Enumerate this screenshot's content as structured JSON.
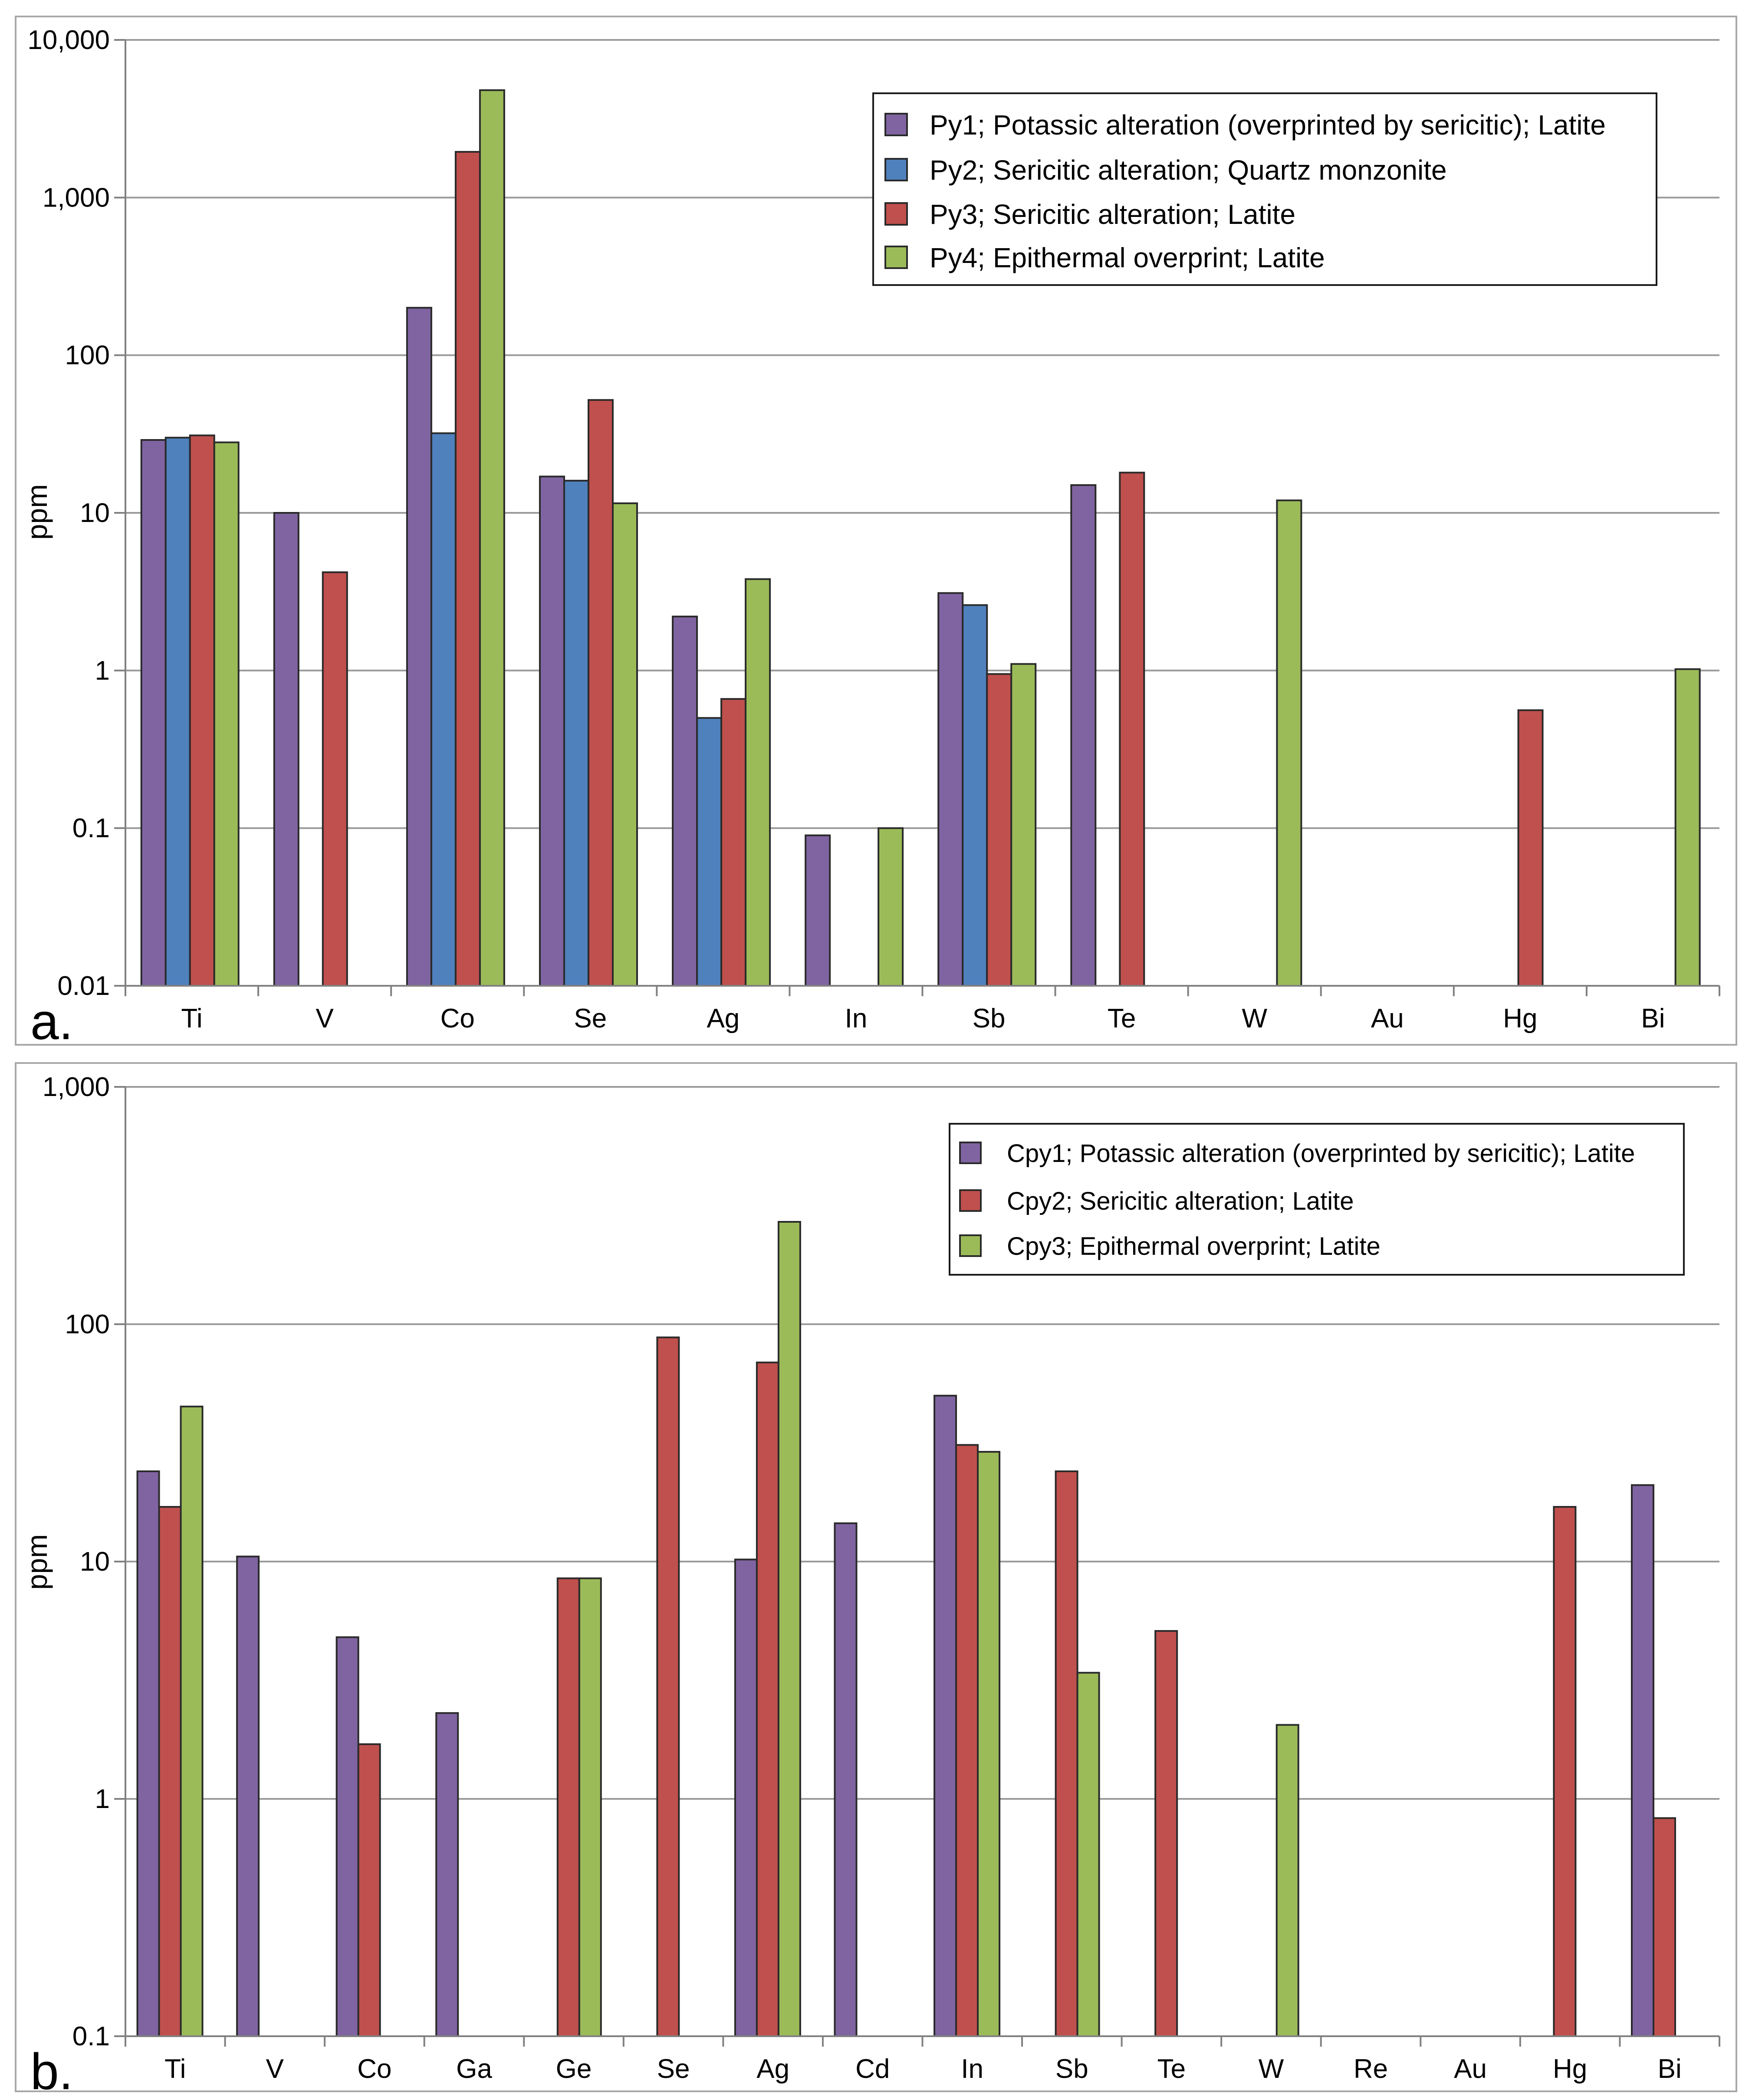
{
  "chart_data": [
    {
      "type": "bar",
      "panel_label": "a.",
      "ylabel": "ppm",
      "yscale": "log",
      "ylim": [
        0.01,
        10000
      ],
      "ytick_values": [
        0.01,
        0.1,
        1,
        10,
        100,
        1000,
        10000
      ],
      "ytick_labels": [
        "0.01",
        "0.1",
        "1",
        "10",
        "100",
        "1,000",
        "10,000"
      ],
      "grid": true,
      "legend_position": "top-right",
      "categories": [
        "Ti",
        "V",
        "Co",
        "Se",
        "Ag",
        "In",
        "Sb",
        "Te",
        "W",
        "Au",
        "Hg",
        "Bi"
      ],
      "series": [
        {
          "name": "Py1; Potassic alteration (overprinted by sericitic); Latite",
          "color": "#8064a2",
          "values": [
            29,
            10,
            200,
            17,
            2.2,
            0.09,
            3.1,
            15,
            null,
            null,
            null,
            null
          ]
        },
        {
          "name": "Py2; Sericitic alteration; Quartz monzonite",
          "color": "#4f81bd",
          "values": [
            30,
            null,
            32,
            16,
            0.5,
            null,
            2.6,
            null,
            null,
            null,
            null,
            null
          ]
        },
        {
          "name": "Py3; Sericitic alteration; Latite",
          "color": "#c0504d",
          "values": [
            31,
            4.2,
            1950,
            52,
            0.66,
            null,
            0.95,
            18,
            null,
            null,
            0.56,
            null
          ]
        },
        {
          "name": "Py4; Epithermal overprint; Latite",
          "color": "#9bbb59",
          "values": [
            28,
            null,
            4800,
            11.5,
            3.8,
            0.1,
            1.1,
            null,
            12,
            null,
            null,
            1.02
          ]
        }
      ]
    },
    {
      "type": "bar",
      "panel_label": "b.",
      "ylabel": "ppm",
      "yscale": "log",
      "ylim": [
        0.1,
        1000
      ],
      "ytick_values": [
        0.1,
        1,
        10,
        100,
        1000
      ],
      "ytick_labels": [
        "0.1",
        "1",
        "10",
        "100",
        "1,000"
      ],
      "grid": true,
      "legend_position": "top-right",
      "categories": [
        "Ti",
        "V",
        "Co",
        "Ga",
        "Ge",
        "Se",
        "Ag",
        "Cd",
        "In",
        "Sb",
        "Te",
        "W",
        "Re",
        "Au",
        "Hg",
        "Bi"
      ],
      "series": [
        {
          "name": "Cpy1; Potassic alteration (overprinted by sericitic); Latite",
          "color": "#8064a2",
          "values": [
            24,
            10.5,
            4.8,
            2.3,
            null,
            null,
            10.2,
            14.5,
            50,
            null,
            null,
            null,
            null,
            null,
            null,
            21
          ]
        },
        {
          "name": "Cpy2; Sericitic alteration; Latite",
          "color": "#c0504d",
          "values": [
            17,
            null,
            1.7,
            null,
            8.5,
            88,
            69,
            null,
            31,
            24,
            5.1,
            null,
            null,
            null,
            17,
            0.83
          ]
        },
        {
          "name": "Cpy3; Epithermal overprint; Latite",
          "color": "#9bbb59",
          "values": [
            45,
            null,
            null,
            null,
            8.5,
            null,
            270,
            null,
            29,
            3.4,
            null,
            2.05,
            null,
            null,
            null,
            null
          ]
        }
      ]
    }
  ]
}
